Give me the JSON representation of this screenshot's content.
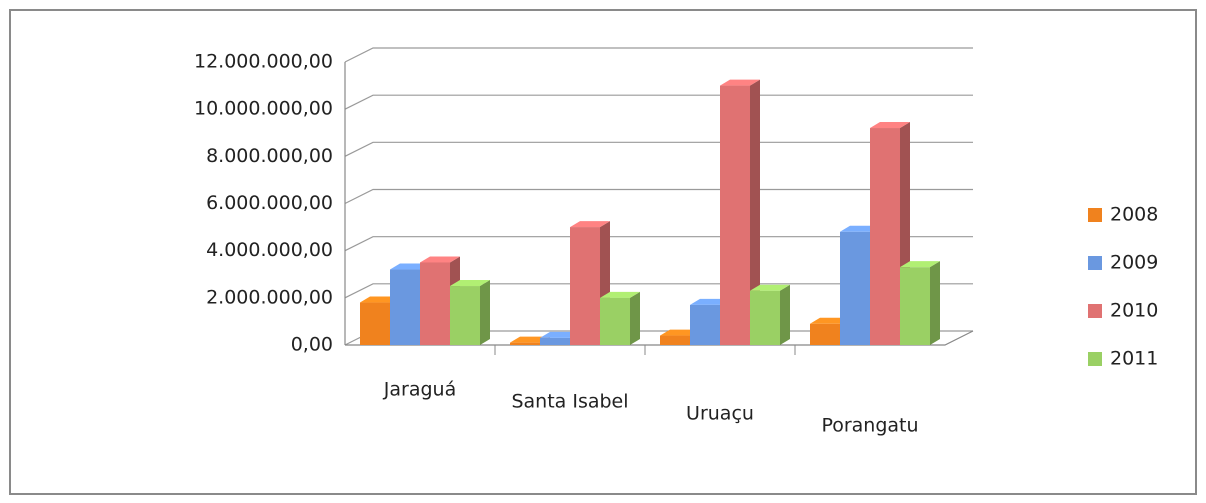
{
  "chart_data": {
    "type": "bar3d",
    "categories": [
      "Jaraguá",
      "Santa Isabel",
      "Uruaçu",
      "Porangatu"
    ],
    "series": [
      {
        "name": "2008",
        "color": "#f0821e",
        "values": [
          1800000,
          100000,
          400000,
          900000
        ]
      },
      {
        "name": "2009",
        "color": "#6a98e0",
        "values": [
          3200000,
          300000,
          1700000,
          4800000
        ]
      },
      {
        "name": "2010",
        "color": "#e07272",
        "values": [
          3500000,
          5000000,
          11000000,
          9200000
        ]
      },
      {
        "name": "2011",
        "color": "#9ad064",
        "values": [
          2500000,
          2000000,
          2300000,
          3300000
        ]
      }
    ],
    "ylim": [
      0,
      12000000
    ],
    "yticks": [
      {
        "value": 0,
        "label": "0,00"
      },
      {
        "value": 2000000,
        "label": "2.000.000,00"
      },
      {
        "value": 4000000,
        "label": "4.000.000,00"
      },
      {
        "value": 6000000,
        "label": "6.000.000,00"
      },
      {
        "value": 8000000,
        "label": "8.000.000,00"
      },
      {
        "value": 10000000,
        "label": "10.000.000,00"
      },
      {
        "value": 12000000,
        "label": "12.000.000,00"
      }
    ],
    "grid": true,
    "legend": "right"
  }
}
